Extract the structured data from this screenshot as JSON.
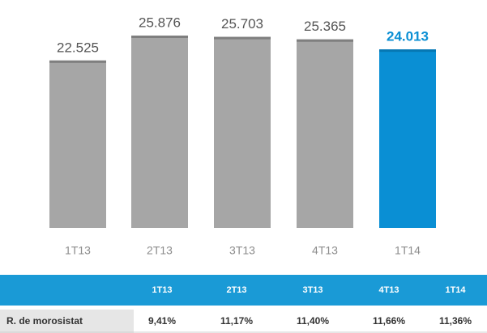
{
  "chart_data": {
    "type": "bar",
    "categories": [
      "1T13",
      "2T13",
      "3T13",
      "4T13",
      "1T14"
    ],
    "values": [
      22525,
      25876,
      25703,
      25365,
      24013
    ],
    "value_labels": [
      "22.525",
      "25.876",
      "25.703",
      "25.365",
      "24.013"
    ],
    "colors": [
      "#a6a6a6",
      "#a6a6a6",
      "#a6a6a6",
      "#a6a6a6",
      "#0a8fd4"
    ],
    "label_colors": [
      "#555555",
      "#555555",
      "#555555",
      "#555555",
      "#0a8fd4"
    ]
  },
  "table": {
    "header": [
      "1T13",
      "2T13",
      "3T13",
      "4T13",
      "1T14"
    ],
    "rows": [
      [
        "R. de morosistat",
        "9,41%",
        "11,17%",
        "11,40%",
        "11,66%",
        "11,36%"
      ]
    ]
  }
}
